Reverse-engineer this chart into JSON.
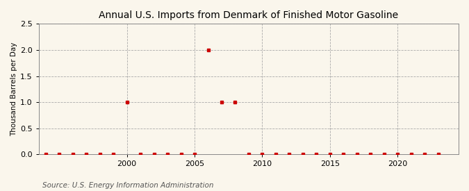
{
  "title": "Annual U.S. Imports from Denmark of Finished Motor Gasoline",
  "ylabel": "Thousand Barrels per Day",
  "source": "Source: U.S. Energy Information Administration",
  "background_color": "#faf6ec",
  "plot_background_color": "#faf6ec",
  "ylim": [
    0.0,
    2.5
  ],
  "yticks": [
    0.0,
    0.5,
    1.0,
    1.5,
    2.0,
    2.5
  ],
  "xlim": [
    1993.5,
    2024.5
  ],
  "xticks": [
    2000,
    2005,
    2010,
    2015,
    2020
  ],
  "data_years": [
    1994,
    1995,
    1996,
    1997,
    1998,
    1999,
    2000,
    2001,
    2002,
    2003,
    2004,
    2005,
    2006,
    2007,
    2008,
    2009,
    2010,
    2011,
    2012,
    2013,
    2014,
    2015,
    2016,
    2017,
    2018,
    2019,
    2020,
    2021,
    2022,
    2023
  ],
  "data_values": [
    0,
    0,
    0,
    0,
    0,
    0,
    1.0,
    0,
    0,
    0,
    0,
    0,
    2.0,
    1.0,
    1.0,
    0,
    0,
    0,
    0,
    0,
    0,
    0,
    0,
    0,
    0,
    0,
    0,
    0,
    0,
    0
  ],
  "marker_color": "#cc0000",
  "grid_color": "#aaaaaa",
  "title_fontsize": 10,
  "label_fontsize": 7.5,
  "tick_fontsize": 8,
  "source_fontsize": 7.5
}
